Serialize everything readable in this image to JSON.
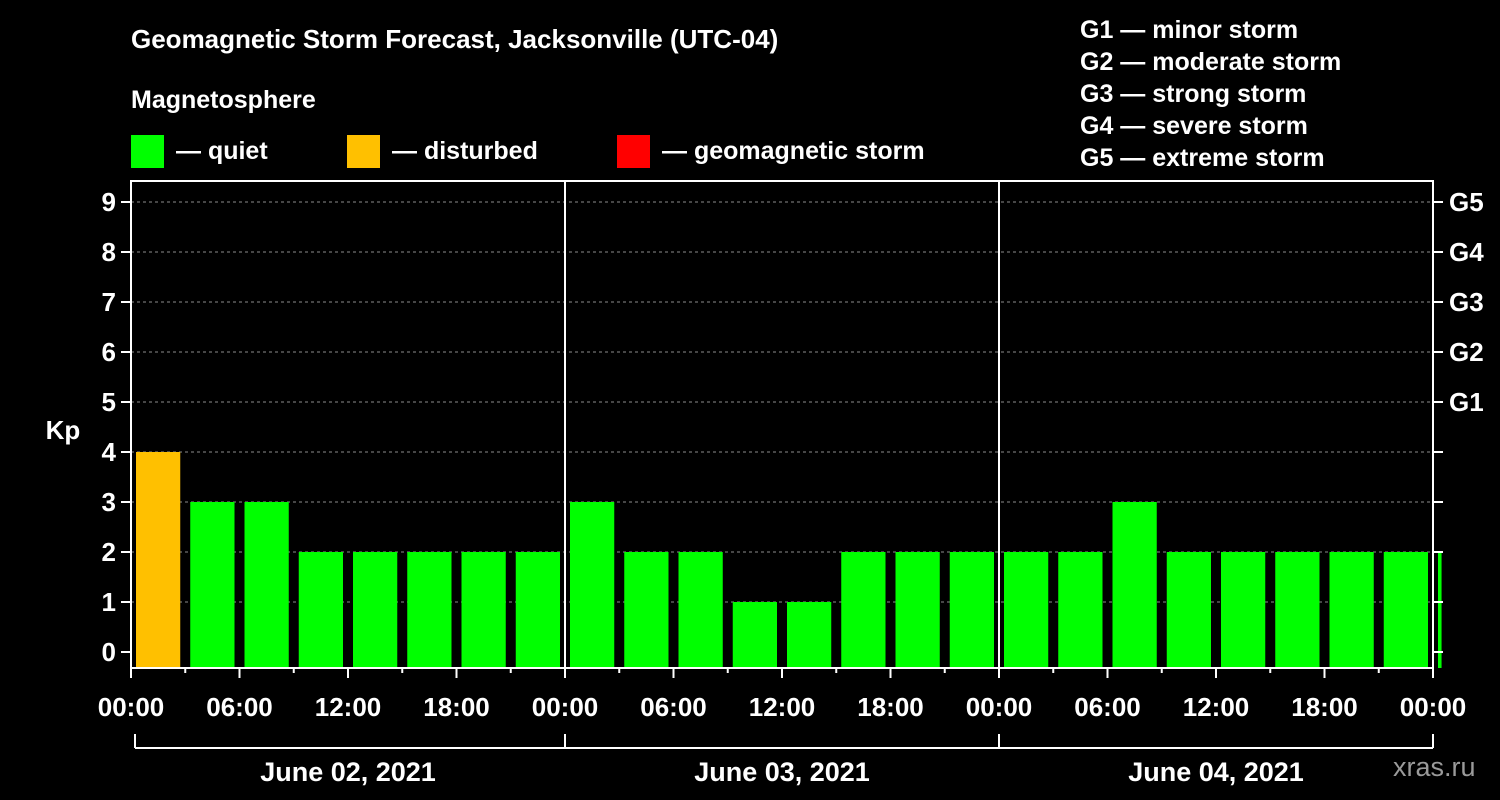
{
  "chart_data": {
    "type": "bar",
    "title": "Geomagnetic Storm Forecast, Jacksonville (UTC-04)",
    "subtitle": "Magnetosphere",
    "ylabel": "Kp",
    "ylim": [
      0,
      9
    ],
    "y_ticks": [
      "0",
      "1",
      "2",
      "3",
      "4",
      "5",
      "6",
      "7",
      "8",
      "9"
    ],
    "right_ticks": [
      {
        "value": 5,
        "label": "G1"
      },
      {
        "value": 6,
        "label": "G2"
      },
      {
        "value": 7,
        "label": "G3"
      },
      {
        "value": 8,
        "label": "G4"
      },
      {
        "value": 9,
        "label": "G5"
      }
    ],
    "x_tick_labels": [
      "00:00",
      "06:00",
      "12:00",
      "18:00",
      "00:00",
      "06:00",
      "12:00",
      "18:00",
      "00:00",
      "06:00",
      "12:00",
      "18:00",
      "00:00"
    ],
    "days": [
      "June 02, 2021",
      "June 03, 2021",
      "June 04, 2021"
    ],
    "values": [
      4,
      3,
      3,
      2,
      2,
      2,
      2,
      2,
      3,
      2,
      2,
      1,
      1,
      2,
      2,
      2,
      2,
      2,
      3,
      2,
      2,
      2,
      2,
      2,
      2
    ],
    "last_bar_partial_fraction": 0.25,
    "grid": "dashed horizontal lines at each Kp level",
    "legend": [
      {
        "label": "— quiet",
        "color": "#00ff00"
      },
      {
        "label": "— disturbed",
        "color": "#ffc000"
      },
      {
        "label": "— geomagnetic storm",
        "color": "#ff0000"
      }
    ],
    "thresholds": {
      "disturbed_min": 4,
      "storm_min": 5
    }
  },
  "storm_scale": [
    "G1 — minor storm",
    "G2 — moderate storm",
    "G3 — strong storm",
    "G4 — severe storm",
    "G5 — extreme storm"
  ],
  "watermark": "xras.ru"
}
